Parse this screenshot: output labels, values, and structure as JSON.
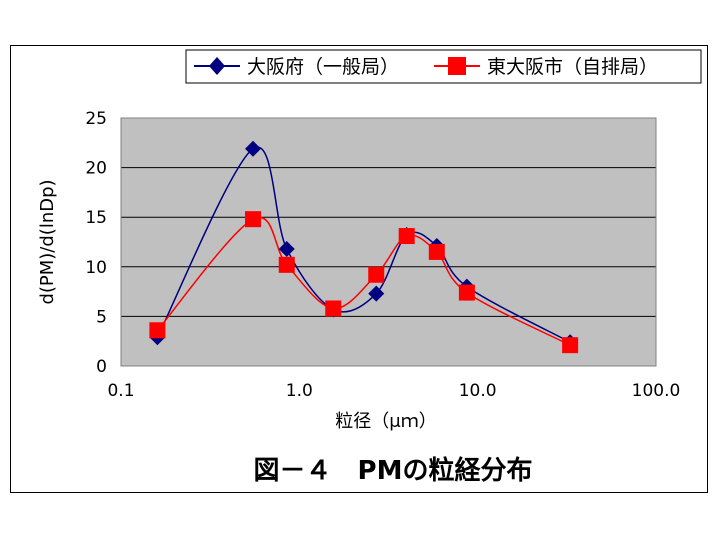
{
  "chart_data": {
    "type": "line",
    "title": "図－４　PMの粒経分布",
    "xlabel": "粒径（μｍ）",
    "ylabel": "d(PM)/d(lnDp)",
    "x_scale": "log",
    "xlim": [
      0.1,
      100.0
    ],
    "ylim": [
      0,
      25
    ],
    "x_ticks": [
      "0.1",
      "1.0",
      "10.0",
      "100.0"
    ],
    "y_ticks": [
      "0",
      "5",
      "10",
      "15",
      "20",
      "25"
    ],
    "grid": "horizontal",
    "legend_position": "top",
    "series": [
      {
        "name": "大阪府（一般局）",
        "color": "#000080",
        "marker": "diamond",
        "x": [
          0.16,
          0.55,
          0.85,
          1.55,
          2.7,
          4.0,
          5.9,
          8.7,
          33.0
        ],
        "y": [
          2.9,
          21.9,
          11.8,
          5.7,
          7.3,
          13.2,
          12.1,
          8.0,
          2.4
        ]
      },
      {
        "name": "東大阪市（自排局）",
        "color": "#ff0000",
        "marker": "square",
        "x": [
          0.16,
          0.55,
          0.85,
          1.55,
          2.7,
          4.0,
          5.9,
          8.7,
          33.0
        ],
        "y": [
          3.6,
          14.8,
          10.2,
          5.8,
          9.2,
          13.1,
          11.5,
          7.4,
          2.1
        ]
      }
    ]
  }
}
